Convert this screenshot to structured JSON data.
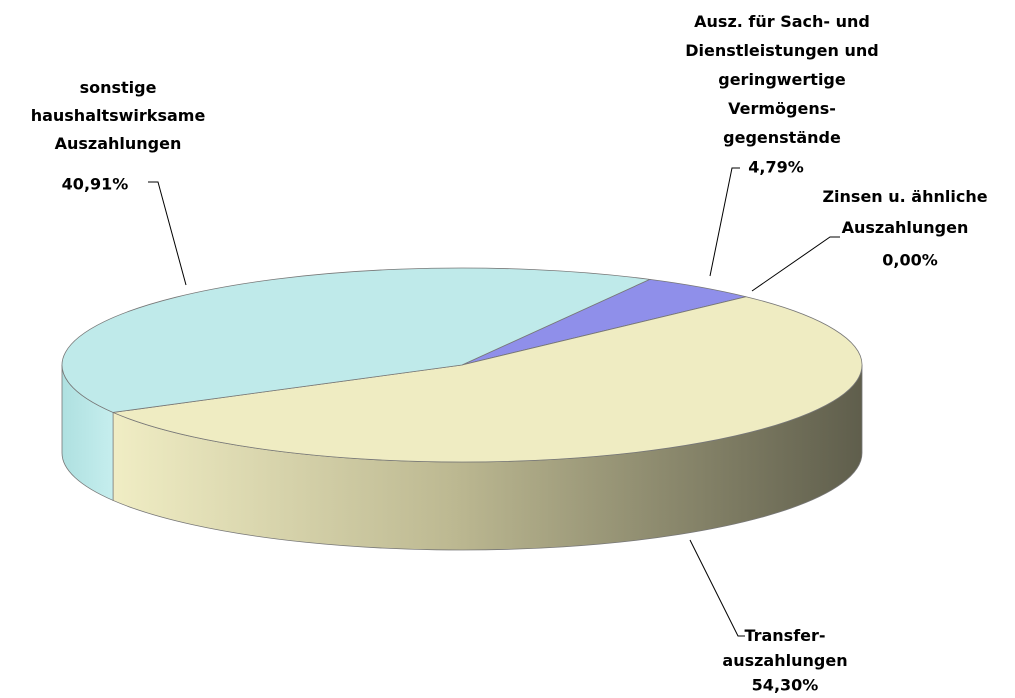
{
  "chart_data": {
    "type": "pie3d",
    "categories": [
      "sonstige\nhaushaltswirksame\nAuszahlungen",
      "Ausz. für Sach- und\nDienstleistungen und\ngeringwertige\nVermögens-\ngegenstände",
      "Zinsen u. ähnliche\nAuszahlungen",
      "Transfer-\nauszahlungen"
    ],
    "values": [
      40.91,
      4.79,
      0.0,
      54.3
    ],
    "value_labels": [
      "40,91%",
      "4,79%",
      "0,00%",
      "54,30%"
    ],
    "colors": [
      "#bfeaea",
      "#8f8fea",
      "#d9a5a5",
      "#efecc2"
    ]
  }
}
